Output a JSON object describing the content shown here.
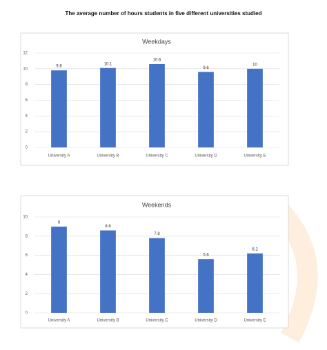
{
  "title": "The average number of hours students in five different universities studied",
  "chart_data": [
    {
      "type": "bar",
      "title": "Weekdays",
      "categories": [
        "University A",
        "University B",
        "University C",
        "University D",
        "University E"
      ],
      "values": [
        9.8,
        10.1,
        10.6,
        9.6,
        10
      ],
      "color": "#4472c4",
      "ylim": [
        0,
        12
      ],
      "yticks": [
        0,
        2,
        4,
        6,
        8,
        10,
        12
      ],
      "grid": true
    },
    {
      "type": "bar",
      "title": "Weekends",
      "categories": [
        "University A",
        "University B",
        "University C",
        "University D",
        "University E"
      ],
      "values": [
        9,
        8.6,
        7.8,
        5.6,
        6.2
      ],
      "color": "#4472c4",
      "ylim": [
        0,
        10
      ],
      "yticks": [
        0,
        2,
        4,
        6,
        8,
        10
      ],
      "grid": true
    }
  ]
}
